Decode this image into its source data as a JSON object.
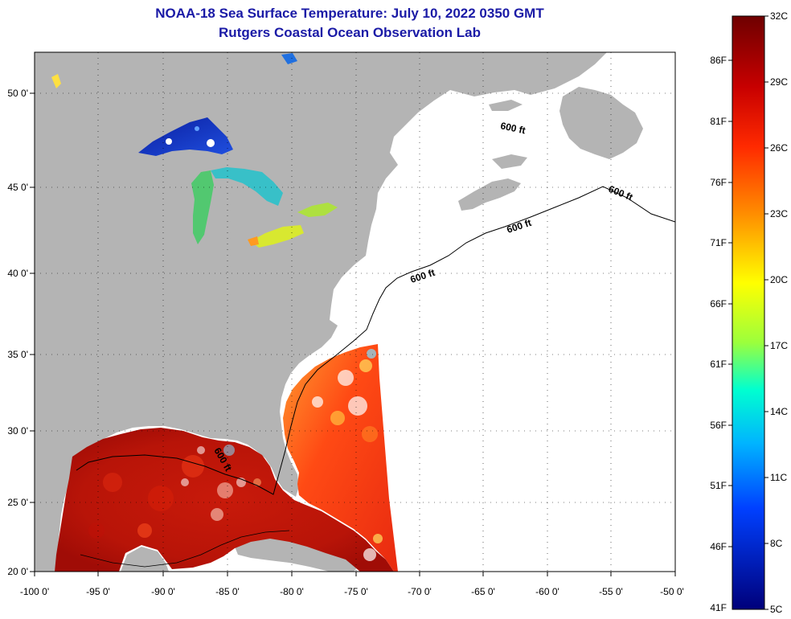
{
  "title": "NOAA-18 Sea Surface Temperature:  July 10, 2022 0350 GMT",
  "subtitle": "Rutgers Coastal Ocean Observation Lab",
  "map": {
    "lon_range": [
      -100,
      -50
    ],
    "lat_range": [
      20,
      52.5
    ],
    "lon_ticks": [
      "-100 0'",
      "-95 0'",
      "-90 0'",
      "-85 0'",
      "-80 0'",
      "-75 0'",
      "-70 0'",
      "-65 0'",
      "-60 0'",
      "-55 0'",
      "-50 0'"
    ],
    "lat_ticks": [
      "50 0'",
      "45 0'",
      "40 0'",
      "35 0'",
      "30 0'",
      "25 0'",
      "20 0'"
    ],
    "contour_labels": [
      "600 ft",
      "600 ft",
      "600 ft",
      "600 ft",
      "600 ft"
    ],
    "grid": true,
    "colors": {
      "land": "#b4b4b4",
      "water_no_data": "#ffffff",
      "grid": "#000000"
    }
  },
  "colorbar": {
    "celsius": [
      "32C",
      "29C",
      "26C",
      "23C",
      "20C",
      "17C",
      "14C",
      "11C",
      "8C",
      "5C"
    ],
    "fahrenheit": [
      "86F",
      "81F",
      "76F",
      "71F",
      "66F",
      "61F",
      "56F",
      "51F",
      "46F",
      "41F"
    ],
    "range_c": [
      5,
      32
    ],
    "colors": [
      "#8b0000",
      "#ff1a00",
      "#ff8c00",
      "#ffff00",
      "#80ff40",
      "#00ffff",
      "#0080ff",
      "#0000cc",
      "#00008b"
    ]
  }
}
